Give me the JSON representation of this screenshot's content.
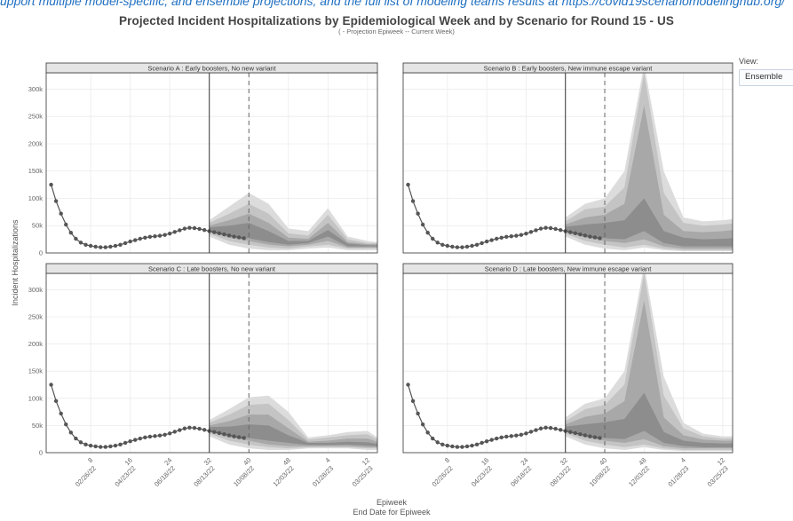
{
  "page": {
    "top_text": "upport multiple model-specific, and ensemble projections, and the full list of modeling teams results at https://covid19scenariomodelinghub.org/",
    "title": "Projected Incident Hospitalizations by Epidemiological Week and by Scenario for Round 15 - US",
    "subtitle": "( - Projection Epiweek -- Current Week)",
    "view_label": "View:",
    "view_value": "Ensemble"
  },
  "colors": {
    "band_outer": "#dcdcdc",
    "band_mid": "#c4c4c4",
    "band_inner": "#a8a8a8",
    "band_core": "#8d8d8d",
    "observed": "#555555",
    "strip_bg": "#e5e5e5",
    "grid": "#ebebeb"
  },
  "chart_data": {
    "type": "area",
    "x_title": "Epiweek",
    "x_title2": "End Date for Epiweek",
    "y_title": "Incident Hospitalizations",
    "ylim": [
      0,
      330000
    ],
    "y_ticks": [
      0,
      50000,
      100000,
      150000,
      200000,
      250000,
      300000
    ],
    "y_tick_labels": [
      "0",
      "50k",
      "100k",
      "150k",
      "200k",
      "250k",
      "300k"
    ],
    "x_ticks": [
      {
        "week": "8",
        "date": "02/26/22"
      },
      {
        "week": "16",
        "date": "04/23/22"
      },
      {
        "week": "24",
        "date": "06/18/22"
      },
      {
        "week": "32",
        "date": "08/13/22"
      },
      {
        "week": "40",
        "date": "10/08/22"
      },
      {
        "week": "48",
        "date": "12/03/22"
      },
      {
        "week": "4",
        "date": "01/28/23"
      },
      {
        "week": "12",
        "date": "03/25/23"
      }
    ],
    "projection_start": "08/13/22",
    "current_week": "10/08/22",
    "observed": [
      {
        "date": "01/01/22",
        "value": 125000
      },
      {
        "date": "01/08/22",
        "value": 95000
      },
      {
        "date": "01/15/22",
        "value": 72000
      },
      {
        "date": "01/22/22",
        "value": 52000
      },
      {
        "date": "01/29/22",
        "value": 37000
      },
      {
        "date": "02/05/22",
        "value": 26000
      },
      {
        "date": "02/12/22",
        "value": 19000
      },
      {
        "date": "02/19/22",
        "value": 15000
      },
      {
        "date": "02/26/22",
        "value": 13000
      },
      {
        "date": "03/05/22",
        "value": 11500
      },
      {
        "date": "03/12/22",
        "value": 10500
      },
      {
        "date": "03/19/22",
        "value": 10500
      },
      {
        "date": "03/26/22",
        "value": 11500
      },
      {
        "date": "04/02/22",
        "value": 13000
      },
      {
        "date": "04/09/22",
        "value": 15000
      },
      {
        "date": "04/16/22",
        "value": 18000
      },
      {
        "date": "04/23/22",
        "value": 21000
      },
      {
        "date": "04/30/22",
        "value": 23500
      },
      {
        "date": "05/07/22",
        "value": 26000
      },
      {
        "date": "05/14/22",
        "value": 28000
      },
      {
        "date": "05/21/22",
        "value": 29500
      },
      {
        "date": "05/28/22",
        "value": 30500
      },
      {
        "date": "06/04/22",
        "value": 31500
      },
      {
        "date": "06/11/22",
        "value": 33000
      },
      {
        "date": "06/18/22",
        "value": 35500
      },
      {
        "date": "06/25/22",
        "value": 38500
      },
      {
        "date": "07/02/22",
        "value": 41500
      },
      {
        "date": "07/09/22",
        "value": 44500
      },
      {
        "date": "07/16/22",
        "value": 46000
      },
      {
        "date": "07/23/22",
        "value": 45500
      },
      {
        "date": "07/30/22",
        "value": 44000
      },
      {
        "date": "08/06/22",
        "value": 42000
      },
      {
        "date": "08/13/22",
        "value": 40000
      },
      {
        "date": "08/20/22",
        "value": 38000
      },
      {
        "date": "08/27/22",
        "value": 36000
      },
      {
        "date": "09/03/22",
        "value": 34000
      },
      {
        "date": "09/10/22",
        "value": 32000
      },
      {
        "date": "09/17/22",
        "value": 30000
      },
      {
        "date": "09/24/22",
        "value": 28500
      },
      {
        "date": "10/01/22",
        "value": 27000
      }
    ],
    "panels": [
      {
        "scenario": "Scenario A : Early boosters, No new variant",
        "projection": [
          {
            "date": "08/13/22",
            "outer": [
              30000,
              60000
            ],
            "mid": [
              35000,
              55000
            ],
            "inner": [
              38000,
              50000
            ],
            "core": [
              40000,
              47000
            ]
          },
          {
            "date": "09/10/22",
            "outer": [
              15000,
              85000
            ],
            "mid": [
              22000,
              72000
            ],
            "inner": [
              28000,
              60000
            ],
            "core": [
              32000,
              50000
            ]
          },
          {
            "date": "10/08/22",
            "outer": [
              8000,
              110000
            ],
            "mid": [
              15000,
              90000
            ],
            "inner": [
              22000,
              72000
            ],
            "core": [
              27000,
              55000
            ]
          },
          {
            "date": "11/05/22",
            "outer": [
              5000,
              90000
            ],
            "mid": [
              10000,
              72000
            ],
            "inner": [
              15000,
              55000
            ],
            "core": [
              20000,
              40000
            ]
          },
          {
            "date": "12/03/22",
            "outer": [
              5000,
              45000
            ],
            "mid": [
              8000,
              36000
            ],
            "inner": [
              12000,
              28000
            ],
            "core": [
              15000,
              22000
            ]
          },
          {
            "date": "12/31/22",
            "outer": [
              8000,
              40000
            ],
            "mid": [
              12000,
              32000
            ],
            "inner": [
              15000,
              26000
            ],
            "core": [
              18000,
              22000
            ]
          },
          {
            "date": "01/28/23",
            "outer": [
              10000,
              82000
            ],
            "mid": [
              15000,
              70000
            ],
            "inner": [
              22000,
              55000
            ],
            "core": [
              30000,
              42000
            ]
          },
          {
            "date": "02/25/23",
            "outer": [
              5000,
              30000
            ],
            "mid": [
              8000,
              25000
            ],
            "inner": [
              10000,
              20000
            ],
            "core": [
              12000,
              17000
            ]
          },
          {
            "date": "03/25/23",
            "outer": [
              5000,
              22000
            ],
            "mid": [
              8000,
              18000
            ],
            "inner": [
              10000,
              16000
            ],
            "core": [
              12000,
              14000
            ]
          },
          {
            "date": "04/08/23",
            "outer": [
              5000,
              20000
            ],
            "mid": [
              8000,
              18000
            ],
            "inner": [
              10000,
              16000
            ],
            "core": [
              12000,
              14000
            ]
          }
        ]
      },
      {
        "scenario": "Scenario B : Early boosters, New immune escape variant",
        "projection": [
          {
            "date": "08/13/22",
            "outer": [
              30000,
              65000
            ],
            "mid": [
              35000,
              58000
            ],
            "inner": [
              38000,
              52000
            ],
            "core": [
              40000,
              48000
            ]
          },
          {
            "date": "09/10/22",
            "outer": [
              15000,
              90000
            ],
            "mid": [
              22000,
              80000
            ],
            "inner": [
              28000,
              65000
            ],
            "core": [
              32000,
              52000
            ]
          },
          {
            "date": "10/08/22",
            "outer": [
              8000,
              100000
            ],
            "mid": [
              15000,
              85000
            ],
            "inner": [
              22000,
              70000
            ],
            "core": [
              27000,
              55000
            ]
          },
          {
            "date": "11/05/22",
            "outer": [
              5000,
              150000
            ],
            "mid": [
              10000,
              120000
            ],
            "inner": [
              18000,
              90000
            ],
            "core": [
              25000,
              60000
            ]
          },
          {
            "date": "12/03/22",
            "outer": [
              10000,
              345000
            ],
            "mid": [
              15000,
              330000
            ],
            "inner": [
              25000,
              270000
            ],
            "core": [
              40000,
              100000
            ]
          },
          {
            "date": "12/31/22",
            "outer": [
              5000,
              150000
            ],
            "mid": [
              8000,
              110000
            ],
            "inner": [
              12000,
              70000
            ],
            "core": [
              18000,
              40000
            ]
          },
          {
            "date": "01/28/23",
            "outer": [
              3000,
              65000
            ],
            "mid": [
              5000,
              55000
            ],
            "inner": [
              8000,
              40000
            ],
            "core": [
              12000,
              28000
            ]
          },
          {
            "date": "02/25/23",
            "outer": [
              3000,
              58000
            ],
            "mid": [
              5000,
              50000
            ],
            "inner": [
              8000,
              38000
            ],
            "core": [
              12000,
              25000
            ]
          },
          {
            "date": "03/25/23",
            "outer": [
              3000,
              60000
            ],
            "mid": [
              5000,
              52000
            ],
            "inner": [
              8000,
              40000
            ],
            "core": [
              12000,
              26000
            ]
          },
          {
            "date": "04/08/23",
            "outer": [
              3000,
              62000
            ],
            "mid": [
              5000,
              54000
            ],
            "inner": [
              8000,
              42000
            ],
            "core": [
              12000,
              27000
            ]
          }
        ]
      },
      {
        "scenario": "Scenario C : Late boosters, No new variant",
        "projection": [
          {
            "date": "08/13/22",
            "outer": [
              30000,
              60000
            ],
            "mid": [
              35000,
              55000
            ],
            "inner": [
              38000,
              50000
            ],
            "core": [
              40000,
              47000
            ]
          },
          {
            "date": "09/10/22",
            "outer": [
              15000,
              80000
            ],
            "mid": [
              22000,
              70000
            ],
            "inner": [
              28000,
              58000
            ],
            "core": [
              32000,
              48000
            ]
          },
          {
            "date": "10/08/22",
            "outer": [
              8000,
              102000
            ],
            "mid": [
              15000,
              88000
            ],
            "inner": [
              22000,
              70000
            ],
            "core": [
              27000,
              52000
            ]
          },
          {
            "date": "11/05/22",
            "outer": [
              5000,
              105000
            ],
            "mid": [
              10000,
              90000
            ],
            "inner": [
              15000,
              70000
            ],
            "core": [
              22000,
              50000
            ]
          },
          {
            "date": "12/03/22",
            "outer": [
              5000,
              75000
            ],
            "mid": [
              8000,
              60000
            ],
            "inner": [
              12000,
              45000
            ],
            "core": [
              18000,
              32000
            ]
          },
          {
            "date": "12/31/22",
            "outer": [
              8000,
              28000
            ],
            "mid": [
              10000,
              24000
            ],
            "inner": [
              12000,
              20000
            ],
            "core": [
              14000,
              18000
            ]
          },
          {
            "date": "01/28/23",
            "outer": [
              8000,
              32000
            ],
            "mid": [
              10000,
              28000
            ],
            "inner": [
              12000,
              22000
            ],
            "core": [
              14000,
              18000
            ]
          },
          {
            "date": "02/25/23",
            "outer": [
              8000,
              38000
            ],
            "mid": [
              10000,
              32000
            ],
            "inner": [
              12000,
              26000
            ],
            "core": [
              15000,
              20000
            ]
          },
          {
            "date": "03/25/23",
            "outer": [
              5000,
              40000
            ],
            "mid": [
              8000,
              34000
            ],
            "inner": [
              10000,
              26000
            ],
            "core": [
              13000,
              19000
            ]
          },
          {
            "date": "04/08/23",
            "outer": [
              5000,
              28000
            ],
            "mid": [
              8000,
              24000
            ],
            "inner": [
              10000,
              20000
            ],
            "core": [
              12000,
              16000
            ]
          }
        ]
      },
      {
        "scenario": "Scenario D : Late boosters, New immune escape variant",
        "projection": [
          {
            "date": "08/13/22",
            "outer": [
              30000,
              65000
            ],
            "mid": [
              35000,
              58000
            ],
            "inner": [
              38000,
              52000
            ],
            "core": [
              40000,
              48000
            ]
          },
          {
            "date": "09/10/22",
            "outer": [
              15000,
              90000
            ],
            "mid": [
              22000,
              80000
            ],
            "inner": [
              28000,
              66000
            ],
            "core": [
              32000,
              52000
            ]
          },
          {
            "date": "10/08/22",
            "outer": [
              8000,
              100000
            ],
            "mid": [
              15000,
              88000
            ],
            "inner": [
              22000,
              72000
            ],
            "core": [
              27000,
              56000
            ]
          },
          {
            "date": "11/05/22",
            "outer": [
              5000,
              150000
            ],
            "mid": [
              10000,
              125000
            ],
            "inner": [
              18000,
              95000
            ],
            "core": [
              25000,
              62000
            ]
          },
          {
            "date": "12/03/22",
            "outer": [
              10000,
              345000
            ],
            "mid": [
              15000,
              330000
            ],
            "inner": [
              25000,
              280000
            ],
            "core": [
              40000,
              110000
            ]
          },
          {
            "date": "12/31/22",
            "outer": [
              5000,
              140000
            ],
            "mid": [
              8000,
              105000
            ],
            "inner": [
              12000,
              65000
            ],
            "core": [
              18000,
              38000
            ]
          },
          {
            "date": "01/28/23",
            "outer": [
              3000,
              55000
            ],
            "mid": [
              5000,
              45000
            ],
            "inner": [
              8000,
              32000
            ],
            "core": [
              12000,
              22000
            ]
          },
          {
            "date": "02/25/23",
            "outer": [
              3000,
              35000
            ],
            "mid": [
              5000,
              30000
            ],
            "inner": [
              8000,
              24000
            ],
            "core": [
              10000,
              18000
            ]
          },
          {
            "date": "03/25/23",
            "outer": [
              3000,
              30000
            ],
            "mid": [
              5000,
              26000
            ],
            "inner": [
              8000,
              22000
            ],
            "core": [
              10000,
              17000
            ]
          },
          {
            "date": "04/08/23",
            "outer": [
              3000,
              30000
            ],
            "mid": [
              5000,
              26000
            ],
            "inner": [
              8000,
              22000
            ],
            "core": [
              10000,
              17000
            ]
          }
        ]
      }
    ]
  }
}
